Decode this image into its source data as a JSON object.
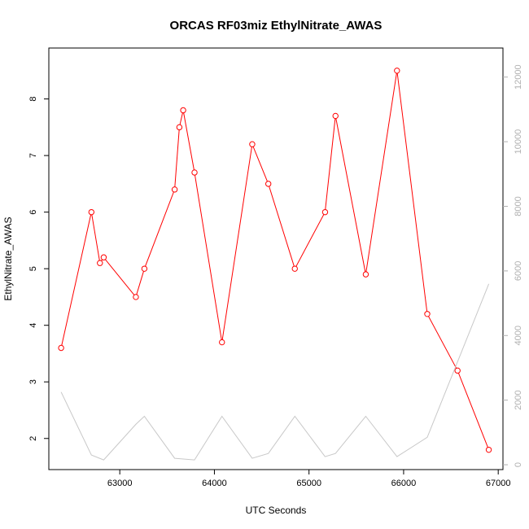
{
  "chart_data": {
    "type": "line",
    "title": "ORCAS RF03miz EthylNitrate_AWAS",
    "xlabel": "UTC Seconds",
    "ylabel": "EthylNitrate_AWAS",
    "xlim": [
      62250,
      67050
    ],
    "ylim": [
      1.45,
      8.9
    ],
    "y2lim": [
      -150,
      12900
    ],
    "x_ticks": [
      63000,
      64000,
      65000,
      66000,
      67000
    ],
    "y_ticks": [
      2,
      3,
      4,
      5,
      6,
      7,
      8
    ],
    "y2_ticks": [
      0,
      2000,
      4000,
      6000,
      8000,
      10000,
      12000
    ],
    "grid": false,
    "series": [
      {
        "axis": "left",
        "color": "#ff0000",
        "markers": "open-circle",
        "x": [
          62380,
          62700,
          62790,
          62830,
          63170,
          63260,
          63580,
          63630,
          63670,
          63790,
          64080,
          64400,
          64570,
          64850,
          65170,
          65280,
          65600,
          65930,
          66250,
          66570,
          66900
        ],
        "y": [
          3.6,
          6.0,
          5.1,
          5.2,
          4.5,
          5.0,
          6.4,
          7.5,
          7.8,
          6.7,
          3.7,
          7.2,
          6.5,
          5.0,
          6.0,
          7.7,
          4.9,
          8.5,
          4.2,
          3.2,
          1.8
        ]
      },
      {
        "axis": "right",
        "color": "#c8c8c8",
        "markers": "none",
        "x": [
          62380,
          62700,
          62830,
          63170,
          63260,
          63580,
          63790,
          64080,
          64400,
          64570,
          64850,
          65170,
          65280,
          65600,
          65930,
          66250,
          66900
        ],
        "y": [
          2250,
          300,
          150,
          1250,
          1500,
          200,
          150,
          1500,
          200,
          350,
          1500,
          250,
          350,
          1500,
          250,
          850,
          5600
        ]
      }
    ]
  }
}
